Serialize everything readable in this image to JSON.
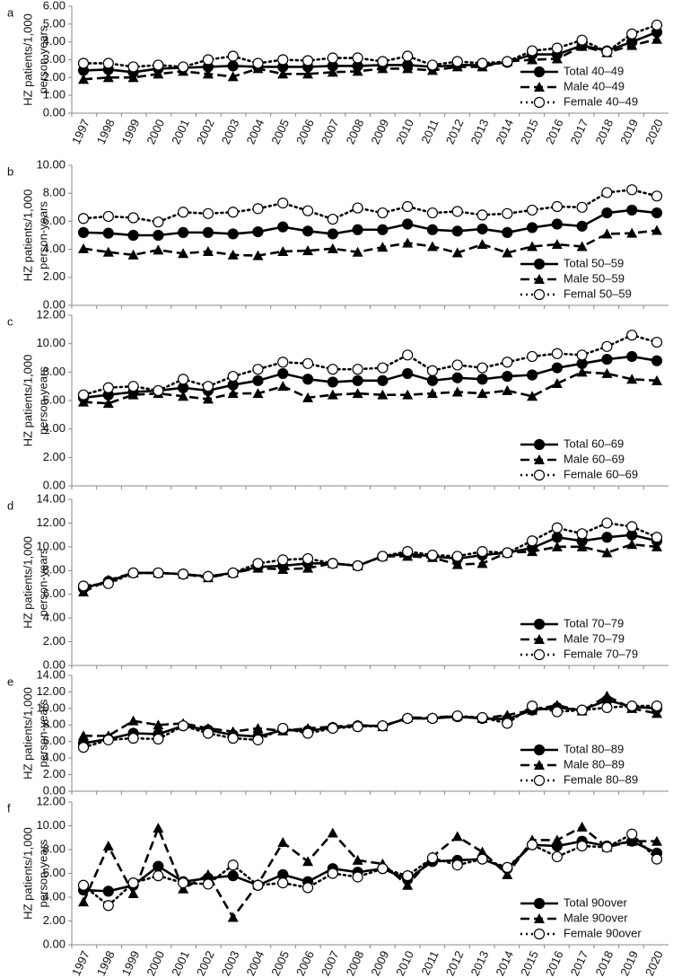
{
  "chart_data": [
    {
      "type": "line",
      "label": "a",
      "ylabel": [
        "HZ patients/1,000",
        "person-years"
      ],
      "legend": "lower right",
      "categories": [
        "1997",
        "1998",
        "1999",
        "2000",
        "2001",
        "2002",
        "2003",
        "2004",
        "2005",
        "2006",
        "2007",
        "2008",
        "2009",
        "2010",
        "2011",
        "2012",
        "2013",
        "2014",
        "2015",
        "2016",
        "2017",
        "2018",
        "2019",
        "2020"
      ],
      "ylim": [
        0,
        6
      ],
      "yticks": [
        {
          "value": 0,
          "label": "0.00"
        },
        {
          "value": 1,
          "label": "1.00"
        },
        {
          "value": 2,
          "label": "2.00"
        },
        {
          "value": 3,
          "label": "3.00"
        },
        {
          "value": 4,
          "label": "4.00"
        },
        {
          "value": 5,
          "label": "5.00"
        },
        {
          "value": 6,
          "label": "6.00"
        }
      ],
      "series": [
        {
          "name": "Total 40–49",
          "color": "#000000",
          "line": "solid",
          "marker": "circle",
          "values": [
            2.4,
            2.45,
            2.3,
            2.5,
            2.55,
            2.6,
            2.65,
            2.6,
            2.6,
            2.6,
            2.65,
            2.65,
            2.7,
            2.7,
            2.6,
            2.7,
            2.7,
            2.85,
            3.3,
            3.3,
            3.8,
            3.5,
            4.0,
            4.55
          ]
        },
        {
          "name": "Male 40–49",
          "color": "#000000",
          "line": "dashed",
          "marker": "triangle",
          "values": [
            1.9,
            2.0,
            2.0,
            2.2,
            2.35,
            2.2,
            2.05,
            2.5,
            2.2,
            2.2,
            2.3,
            2.35,
            2.5,
            2.5,
            2.4,
            2.6,
            2.6,
            2.9,
            3.0,
            3.05,
            3.75,
            3.4,
            3.8,
            4.15
          ]
        },
        {
          "name": "Female 40–49",
          "color": "#000000",
          "line": "dotted",
          "marker": "open-circle",
          "values": [
            2.8,
            2.8,
            2.6,
            2.7,
            2.6,
            3.0,
            3.2,
            2.8,
            3.0,
            2.95,
            3.1,
            3.1,
            2.9,
            3.2,
            2.7,
            2.9,
            2.8,
            2.9,
            3.5,
            3.65,
            4.1,
            3.45,
            4.45,
            4.95
          ]
        }
      ]
    },
    {
      "type": "line",
      "label": "b",
      "ylabel": [
        "HZ patients/1,000",
        "person-years"
      ],
      "legend": "lower right",
      "categories": [
        null,
        null,
        null,
        null,
        null,
        null,
        null,
        null,
        null,
        null,
        null,
        null,
        null,
        null,
        null,
        null,
        null,
        null,
        null,
        null,
        null,
        null,
        null,
        null
      ],
      "ylim": [
        0,
        10
      ],
      "yticks": [
        {
          "value": 0,
          "label": "0.00"
        },
        {
          "value": 2,
          "label": "2.00"
        },
        {
          "value": 4,
          "label": "4.00"
        },
        {
          "value": 6,
          "label": "6.00"
        },
        {
          "value": 8,
          "label": "8.00"
        },
        {
          "value": 10,
          "label": "10.00"
        }
      ],
      "series": [
        {
          "name": "Total 50–59",
          "color": "#000000",
          "line": "solid",
          "marker": "circle",
          "values": [
            5.2,
            5.15,
            5.0,
            5.0,
            5.2,
            5.2,
            5.1,
            5.25,
            5.6,
            5.3,
            5.1,
            5.4,
            5.4,
            5.8,
            5.4,
            5.3,
            5.45,
            5.2,
            5.55,
            5.8,
            5.65,
            6.6,
            6.8,
            6.6
          ]
        },
        {
          "name": "Male 50–59",
          "color": "#000000",
          "line": "dashed",
          "marker": "triangle",
          "values": [
            4.05,
            3.8,
            3.6,
            3.95,
            3.7,
            3.85,
            3.6,
            3.55,
            3.85,
            3.9,
            4.05,
            3.8,
            4.15,
            4.45,
            4.2,
            3.75,
            4.35,
            3.75,
            4.2,
            4.35,
            4.2,
            5.1,
            5.15,
            5.35
          ]
        },
        {
          "name": "Femal 50–59",
          "color": "#000000",
          "line": "dotted",
          "marker": "open-circle",
          "values": [
            6.2,
            6.35,
            6.25,
            5.95,
            6.65,
            6.55,
            6.65,
            6.9,
            7.3,
            6.75,
            6.15,
            6.95,
            6.6,
            7.05,
            6.6,
            6.7,
            6.45,
            6.55,
            6.8,
            7.05,
            7.0,
            8.05,
            8.25,
            7.8
          ]
        }
      ]
    },
    {
      "type": "line",
      "label": "c",
      "ylabel": [
        "HZ patients/1,000",
        "person-years"
      ],
      "legend": "lower right",
      "categories": [
        null,
        null,
        null,
        null,
        null,
        null,
        null,
        null,
        null,
        null,
        null,
        null,
        null,
        null,
        null,
        null,
        null,
        null,
        null,
        null,
        null,
        null,
        null,
        null
      ],
      "ylim": [
        0,
        12
      ],
      "yticks": [
        {
          "value": 0,
          "label": "0.00"
        },
        {
          "value": 2,
          "label": "2.00"
        },
        {
          "value": 4,
          "label": "4.00"
        },
        {
          "value": 6,
          "label": "6.00"
        },
        {
          "value": 8,
          "label": "8.00"
        },
        {
          "value": 10,
          "label": "10.00"
        },
        {
          "value": 12,
          "label": "12.00"
        }
      ],
      "series": [
        {
          "name": "Total 60–69",
          "color": "#000000",
          "line": "solid",
          "marker": "circle",
          "values": [
            6.2,
            6.4,
            6.6,
            6.7,
            6.9,
            6.7,
            7.1,
            7.4,
            7.9,
            7.5,
            7.3,
            7.4,
            7.4,
            7.9,
            7.4,
            7.6,
            7.5,
            7.7,
            7.8,
            8.3,
            8.6,
            8.9,
            9.1,
            8.8
          ]
        },
        {
          "name": "Male 60–69",
          "color": "#000000",
          "line": "dashed",
          "marker": "triangle",
          "values": [
            5.9,
            5.8,
            6.4,
            6.5,
            6.3,
            6.1,
            6.5,
            6.5,
            7.0,
            6.2,
            6.4,
            6.5,
            6.4,
            6.4,
            6.5,
            6.6,
            6.5,
            6.7,
            6.3,
            7.2,
            8.0,
            7.9,
            7.5,
            7.4
          ]
        },
        {
          "name": "Female 60–69",
          "color": "#000000",
          "line": "dotted",
          "marker": "open-circle",
          "values": [
            6.4,
            6.9,
            7.0,
            6.7,
            7.5,
            7.0,
            7.7,
            8.2,
            8.7,
            8.6,
            8.2,
            8.2,
            8.3,
            9.2,
            8.1,
            8.5,
            8.3,
            8.7,
            9.1,
            9.3,
            9.2,
            9.8,
            10.6,
            10.1
          ]
        }
      ]
    },
    {
      "type": "line",
      "label": "d",
      "ylabel": [
        "HZ patients/1,000",
        "person-years"
      ],
      "legend": "lower right",
      "categories": [
        null,
        null,
        null,
        null,
        null,
        null,
        null,
        null,
        null,
        null,
        null,
        null,
        null,
        null,
        null,
        null,
        null,
        null,
        null,
        null,
        null,
        null,
        null,
        null
      ],
      "ylim": [
        0,
        14
      ],
      "yticks": [
        {
          "value": 0,
          "label": "0.00"
        },
        {
          "value": 2,
          "label": "2.00"
        },
        {
          "value": 4,
          "label": "4.00"
        },
        {
          "value": 6,
          "label": "6.00"
        },
        {
          "value": 8,
          "label": "8.00"
        },
        {
          "value": 10,
          "label": "10.00"
        },
        {
          "value": 12,
          "label": "12.00"
        },
        {
          "value": 14,
          "label": "14.00"
        }
      ],
      "series": [
        {
          "name": "Total 70–79",
          "color": "#000000",
          "line": "solid",
          "marker": "circle",
          "values": [
            6.5,
            7.1,
            7.8,
            7.8,
            7.7,
            7.5,
            7.8,
            8.3,
            8.4,
            8.6,
            8.6,
            8.4,
            9.2,
            9.4,
            9.2,
            9.0,
            9.3,
            9.5,
            9.9,
            10.8,
            10.5,
            10.8,
            11.0,
            10.5
          ]
        },
        {
          "name": "Male 70–79",
          "color": "#000000",
          "line": "dashed",
          "marker": "triangle",
          "values": [
            6.2,
            7.2,
            7.8,
            7.8,
            7.7,
            7.4,
            7.8,
            8.2,
            8.1,
            8.2,
            8.6,
            8.4,
            9.2,
            9.2,
            9.1,
            8.5,
            8.6,
            9.5,
            9.6,
            10.0,
            10.0,
            9.5,
            10.2,
            10.0
          ]
        },
        {
          "name": "Female 70–79",
          "color": "#000000",
          "line": "dotted",
          "marker": "open-circle",
          "values": [
            6.7,
            6.9,
            7.8,
            7.8,
            7.7,
            7.5,
            7.8,
            8.6,
            8.9,
            9.0,
            8.6,
            8.4,
            9.2,
            9.6,
            9.3,
            9.2,
            9.6,
            9.5,
            10.5,
            11.6,
            11.1,
            12.0,
            11.7,
            10.8
          ]
        }
      ]
    },
    {
      "type": "line",
      "label": "e",
      "ylabel": [
        "HZ patients/1,000",
        "person-years"
      ],
      "legend": "lower right",
      "categories": [
        null,
        null,
        null,
        null,
        null,
        null,
        null,
        null,
        null,
        null,
        null,
        null,
        null,
        null,
        null,
        null,
        null,
        null,
        null,
        null,
        null,
        null,
        null,
        null
      ],
      "ylim": [
        0,
        14
      ],
      "yticks": [
        {
          "value": 0,
          "label": "0.00"
        },
        {
          "value": 2,
          "label": "2.00"
        },
        {
          "value": 4,
          "label": "4.00"
        },
        {
          "value": 6,
          "label": "6.00"
        },
        {
          "value": 8,
          "label": "8.00"
        },
        {
          "value": 10,
          "label": "10.00"
        },
        {
          "value": 12,
          "label": "12.00"
        },
        {
          "value": 14,
          "label": "14.00"
        }
      ],
      "series": [
        {
          "name": "Total 80–89",
          "color": "#000000",
          "line": "solid",
          "marker": "circle",
          "values": [
            5.8,
            6.3,
            7.0,
            6.9,
            7.9,
            7.4,
            6.8,
            6.6,
            7.4,
            7.3,
            7.7,
            7.9,
            7.9,
            8.8,
            8.8,
            9.0,
            8.8,
            8.7,
            9.8,
            10.1,
            9.8,
            11.0,
            10.2,
            10.0
          ]
        },
        {
          "name": "Male 80–89",
          "color": "#000000",
          "line": "dashed",
          "marker": "triangle",
          "values": [
            6.7,
            6.7,
            8.5,
            8.0,
            8.2,
            7.6,
            7.2,
            7.6,
            7.3,
            7.6,
            7.8,
            8.0,
            7.8,
            8.9,
            8.9,
            9.1,
            8.8,
            9.2,
            9.8,
            10.4,
            9.7,
            11.5,
            10.0,
            9.4
          ]
        },
        {
          "name": "Female 80–89",
          "color": "#000000",
          "line": "dotted",
          "marker": "open-circle",
          "values": [
            5.3,
            6.2,
            6.4,
            6.3,
            7.9,
            7.0,
            6.4,
            6.2,
            7.6,
            7.0,
            7.6,
            7.8,
            7.9,
            8.8,
            8.8,
            9.1,
            8.9,
            8.2,
            10.3,
            9.6,
            9.8,
            10.1,
            10.3,
            10.3
          ]
        }
      ]
    },
    {
      "type": "line",
      "label": "f",
      "ylabel": [
        "HZ patients/1,000",
        "person-years"
      ],
      "legend": "lower right",
      "categories": [
        "1997",
        "1998",
        "1999",
        "2000",
        "2001",
        "2002",
        "2003",
        "2004",
        "2005",
        "2006",
        "2007",
        "2008",
        "2009",
        "2010",
        "2011",
        "2012",
        "2013",
        "2014",
        "2015",
        "2016",
        "2017",
        "2018",
        "2019",
        "2020"
      ],
      "ylim": [
        0,
        12
      ],
      "yticks": [
        {
          "value": 0,
          "label": "0.00"
        },
        {
          "value": 2,
          "label": "2.00"
        },
        {
          "value": 4,
          "label": "4.00"
        },
        {
          "value": 6,
          "label": "6.00"
        },
        {
          "value": 8,
          "label": "8.00"
        },
        {
          "value": 10,
          "label": "10.00"
        },
        {
          "value": 12,
          "label": "12.00"
        }
      ],
      "series": [
        {
          "name": "Total 90over",
          "color": "#000000",
          "line": "solid",
          "marker": "circle",
          "values": [
            4.6,
            4.5,
            5.0,
            6.6,
            5.3,
            5.6,
            5.8,
            5.0,
            5.9,
            5.3,
            6.4,
            6.1,
            6.4,
            5.5,
            7.0,
            7.1,
            7.2,
            6.4,
            8.4,
            8.3,
            8.7,
            8.3,
            8.7,
            7.7
          ]
        },
        {
          "name": "Male 90over",
          "color": "#000000",
          "line": "dashed",
          "marker": "triangle",
          "values": [
            3.6,
            8.3,
            4.3,
            9.8,
            4.7,
            5.9,
            2.3,
            5.1,
            8.6,
            7.0,
            9.4,
            7.1,
            6.8,
            5.0,
            7.4,
            9.1,
            7.8,
            5.9,
            8.8,
            8.8,
            9.9,
            8.2,
            8.7,
            8.7
          ]
        },
        {
          "name": "Female 90over",
          "color": "#000000",
          "line": "dotted",
          "marker": "open-circle",
          "values": [
            5.0,
            3.3,
            5.2,
            5.8,
            5.2,
            5.1,
            6.7,
            5.0,
            5.2,
            4.8,
            6.0,
            5.7,
            6.4,
            5.8,
            7.3,
            6.7,
            7.2,
            6.5,
            8.4,
            7.4,
            8.3,
            8.2,
            9.3,
            7.2
          ]
        }
      ]
    }
  ]
}
